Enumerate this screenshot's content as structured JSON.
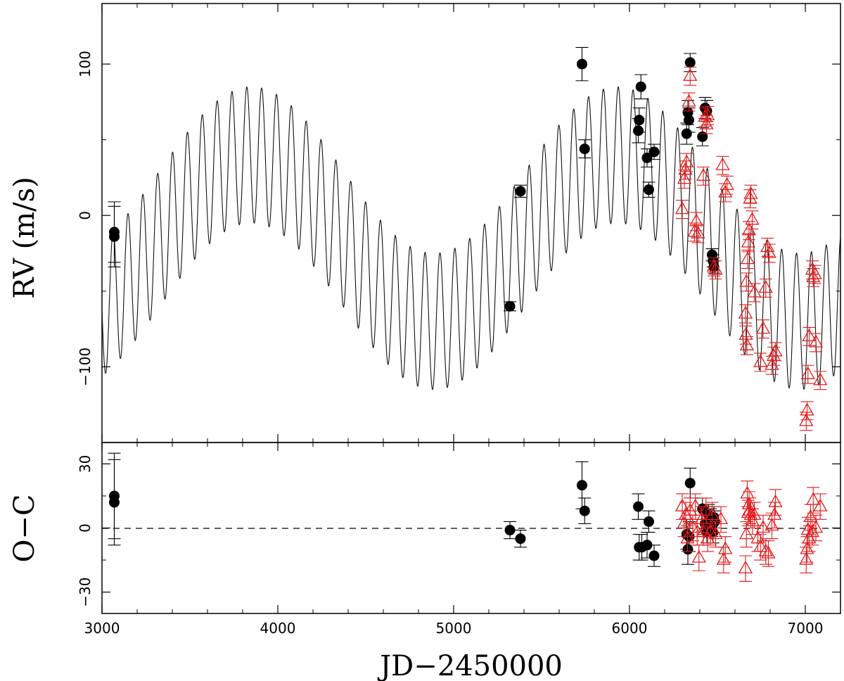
{
  "chart_data": [
    {
      "type": "scatter",
      "panel": "top",
      "ylabel": "RV (m/s)",
      "xlim": [
        3000,
        7200
      ],
      "ylim": [
        -150,
        140
      ],
      "x_ticks": [
        3000,
        4000,
        5000,
        6000,
        7000
      ],
      "y_ticks": [
        -100,
        0,
        100
      ],
      "y_tick_labels": [
        "−100",
        "0",
        "100"
      ],
      "model": {
        "offset": -15,
        "long_amplitude": 55,
        "long_period": 2080,
        "long_phase_jd": 3850,
        "short_amplitude": 45,
        "short_period": 84.5,
        "x_range": [
          3000,
          7200
        ]
      },
      "series": [
        {
          "marker": "filled-circle",
          "color": "#000000",
          "points": [
            [
              3070,
              -11,
              20
            ],
            [
              3070,
              -14,
              20
            ],
            [
              5320,
              -60,
              3
            ],
            [
              5380,
              16,
              4
            ],
            [
              5730,
              100,
              11
            ],
            [
              5745,
              44,
              6
            ],
            [
              6050,
              56,
              8
            ],
            [
              6055,
              63,
              8
            ],
            [
              6065,
              85,
              8
            ],
            [
              6100,
              38,
              6
            ],
            [
              6110,
              17,
              5
            ],
            [
              6140,
              42,
              5
            ],
            [
              6325,
              54,
              7
            ],
            [
              6332,
              68,
              8
            ],
            [
              6338,
              63,
              8
            ],
            [
              6345,
              101,
              6
            ],
            [
              6415,
              52,
              6
            ],
            [
              6430,
              71,
              7
            ],
            [
              6440,
              69,
              7
            ],
            [
              6470,
              -26,
              4
            ],
            [
              6475,
              -30,
              4
            ],
            [
              6480,
              -34,
              4
            ]
          ]
        },
        {
          "marker": "open-triangle",
          "color": "#e31a1c",
          "points": [
            [
              6300,
              4,
              6
            ],
            [
              6312,
              24,
              6
            ],
            [
              6318,
              30,
              6
            ],
            [
              6325,
              35,
              6
            ],
            [
              6338,
              75,
              6
            ],
            [
              6345,
              92,
              6
            ],
            [
              6370,
              -11,
              6
            ],
            [
              6380,
              -4,
              6
            ],
            [
              6390,
              -12,
              6
            ],
            [
              6420,
              26,
              6
            ],
            [
              6430,
              65,
              6
            ],
            [
              6438,
              60,
              6
            ],
            [
              6445,
              66,
              6
            ],
            [
              6480,
              -34,
              6
            ],
            [
              6490,
              -36,
              6
            ],
            [
              6530,
              33,
              6
            ],
            [
              6545,
              15,
              6
            ],
            [
              6555,
              20,
              6
            ],
            [
              6660,
              -65,
              6
            ],
            [
              6662,
              -79,
              6
            ],
            [
              6665,
              -44,
              6
            ],
            [
              6668,
              -86,
              6
            ],
            [
              6672,
              -29,
              6
            ],
            [
              6676,
              -18,
              6
            ],
            [
              6680,
              -10,
              6
            ],
            [
              6686,
              11,
              6
            ],
            [
              6690,
              14,
              6
            ],
            [
              6698,
              -3,
              6
            ],
            [
              6710,
              -51,
              6
            ],
            [
              6745,
              -97,
              6
            ],
            [
              6760,
              -75,
              6
            ],
            [
              6775,
              -48,
              6
            ],
            [
              6785,
              -21,
              6
            ],
            [
              6795,
              -25,
              6
            ],
            [
              6810,
              -99,
              6
            ],
            [
              6820,
              -93,
              6
            ],
            [
              6830,
              -90,
              6
            ],
            [
              7005,
              -136,
              6
            ],
            [
              7010,
              -129,
              6
            ],
            [
              7015,
              -105,
              6
            ],
            [
              7022,
              -80,
              6
            ],
            [
              7040,
              -36,
              6
            ],
            [
              7045,
              -41,
              6
            ],
            [
              7055,
              -39,
              6
            ],
            [
              7060,
              -84,
              6
            ],
            [
              7085,
              -109,
              6
            ]
          ]
        }
      ]
    },
    {
      "type": "scatter",
      "panel": "bottom",
      "ylabel": "O−C",
      "xlabel": "JD−2450000",
      "xlim": [
        3000,
        7200
      ],
      "ylim": [
        -40,
        40
      ],
      "x_ticks": [
        3000,
        4000,
        5000,
        6000,
        7000
      ],
      "y_ticks": [
        -30,
        0,
        30
      ],
      "y_tick_labels": [
        "−30",
        "0",
        "30"
      ],
      "zero_line": 0,
      "series": [
        {
          "marker": "filled-circle",
          "color": "#000000",
          "points": [
            [
              3070,
              15,
              20
            ],
            [
              3070,
              12,
              20
            ],
            [
              5320,
              -1,
              4
            ],
            [
              5380,
              -5,
              4
            ],
            [
              5730,
              20,
              11
            ],
            [
              5745,
              8,
              6
            ],
            [
              6050,
              10,
              6
            ],
            [
              6055,
              -9,
              6
            ],
            [
              6070,
              -9,
              6
            ],
            [
              6100,
              -8,
              6
            ],
            [
              6110,
              3,
              5
            ],
            [
              6140,
              -13,
              5
            ],
            [
              6325,
              -3,
              7
            ],
            [
              6332,
              -10,
              7
            ],
            [
              6340,
              -4,
              7
            ],
            [
              6345,
              21,
              7
            ],
            [
              6415,
              9,
              5
            ],
            [
              6430,
              2,
              5
            ],
            [
              6440,
              -2,
              5
            ],
            [
              6450,
              6,
              5
            ],
            [
              6460,
              4,
              5
            ],
            [
              6470,
              1,
              5
            ],
            [
              6475,
              -2,
              5
            ],
            [
              6480,
              5,
              5
            ],
            [
              6485,
              3,
              5
            ]
          ]
        },
        {
          "marker": "open-triangle",
          "color": "#e31a1c",
          "points": [
            [
              6300,
              10,
              6
            ],
            [
              6310,
              2,
              6
            ],
            [
              6320,
              6,
              6
            ],
            [
              6330,
              -5,
              6
            ],
            [
              6345,
              8,
              6
            ],
            [
              6360,
              0,
              6
            ],
            [
              6375,
              10,
              6
            ],
            [
              6385,
              -2,
              6
            ],
            [
              6395,
              -14,
              6
            ],
            [
              6410,
              4,
              6
            ],
            [
              6420,
              -2,
              6
            ],
            [
              6435,
              8,
              6
            ],
            [
              6445,
              -5,
              6
            ],
            [
              6460,
              -2,
              6
            ],
            [
              6470,
              6,
              6
            ],
            [
              6490,
              -3,
              6
            ],
            [
              6520,
              4,
              6
            ],
            [
              6535,
              -15,
              6
            ],
            [
              6545,
              -10,
              6
            ],
            [
              6660,
              -19,
              6
            ],
            [
              6665,
              -3,
              6
            ],
            [
              6670,
              16,
              6
            ],
            [
              6675,
              7,
              6
            ],
            [
              6680,
              11,
              6
            ],
            [
              6685,
              8,
              6
            ],
            [
              6690,
              6,
              6
            ],
            [
              6700,
              3,
              6
            ],
            [
              6710,
              6,
              6
            ],
            [
              6730,
              -5,
              6
            ],
            [
              6745,
              -9,
              6
            ],
            [
              6760,
              0,
              6
            ],
            [
              6775,
              -11,
              6
            ],
            [
              6790,
              -12,
              6
            ],
            [
              6810,
              1,
              6
            ],
            [
              6825,
              6,
              6
            ],
            [
              6830,
              12,
              6
            ],
            [
              7005,
              -15,
              6
            ],
            [
              7010,
              -10,
              6
            ],
            [
              7015,
              -1,
              6
            ],
            [
              7022,
              -5,
              6
            ],
            [
              7030,
              5,
              6
            ],
            [
              7040,
              -2,
              6
            ],
            [
              7045,
              13,
              6
            ],
            [
              7060,
              0,
              6
            ],
            [
              7085,
              10,
              6
            ]
          ]
        }
      ]
    }
  ]
}
